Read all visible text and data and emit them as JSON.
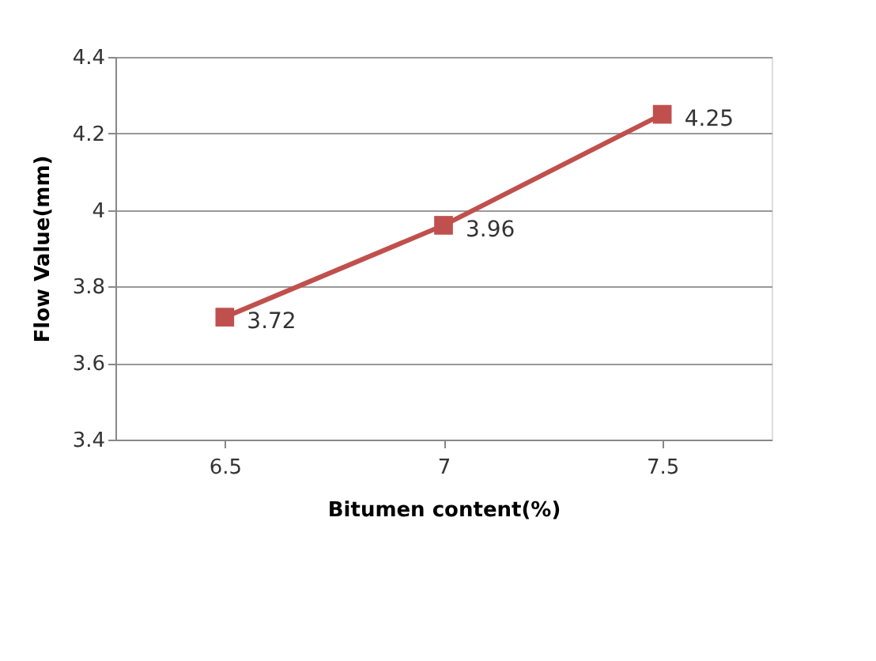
{
  "chart_data": {
    "type": "line",
    "xlabel": "Bitumen content(%)",
    "ylabel": "Flow Value(mm)",
    "categories": [
      "6.5",
      "7",
      "7.5"
    ],
    "series": [
      {
        "color": "#c0504d",
        "values": [
          3.72,
          3.96,
          4.25
        ]
      }
    ],
    "ylim": [
      3.4,
      4.4
    ],
    "yticks": [
      3.4,
      3.6,
      3.8,
      4,
      4.2,
      4.4
    ],
    "grid": "y",
    "marker": "square",
    "line_style": "solid",
    "data_labels": true
  }
}
